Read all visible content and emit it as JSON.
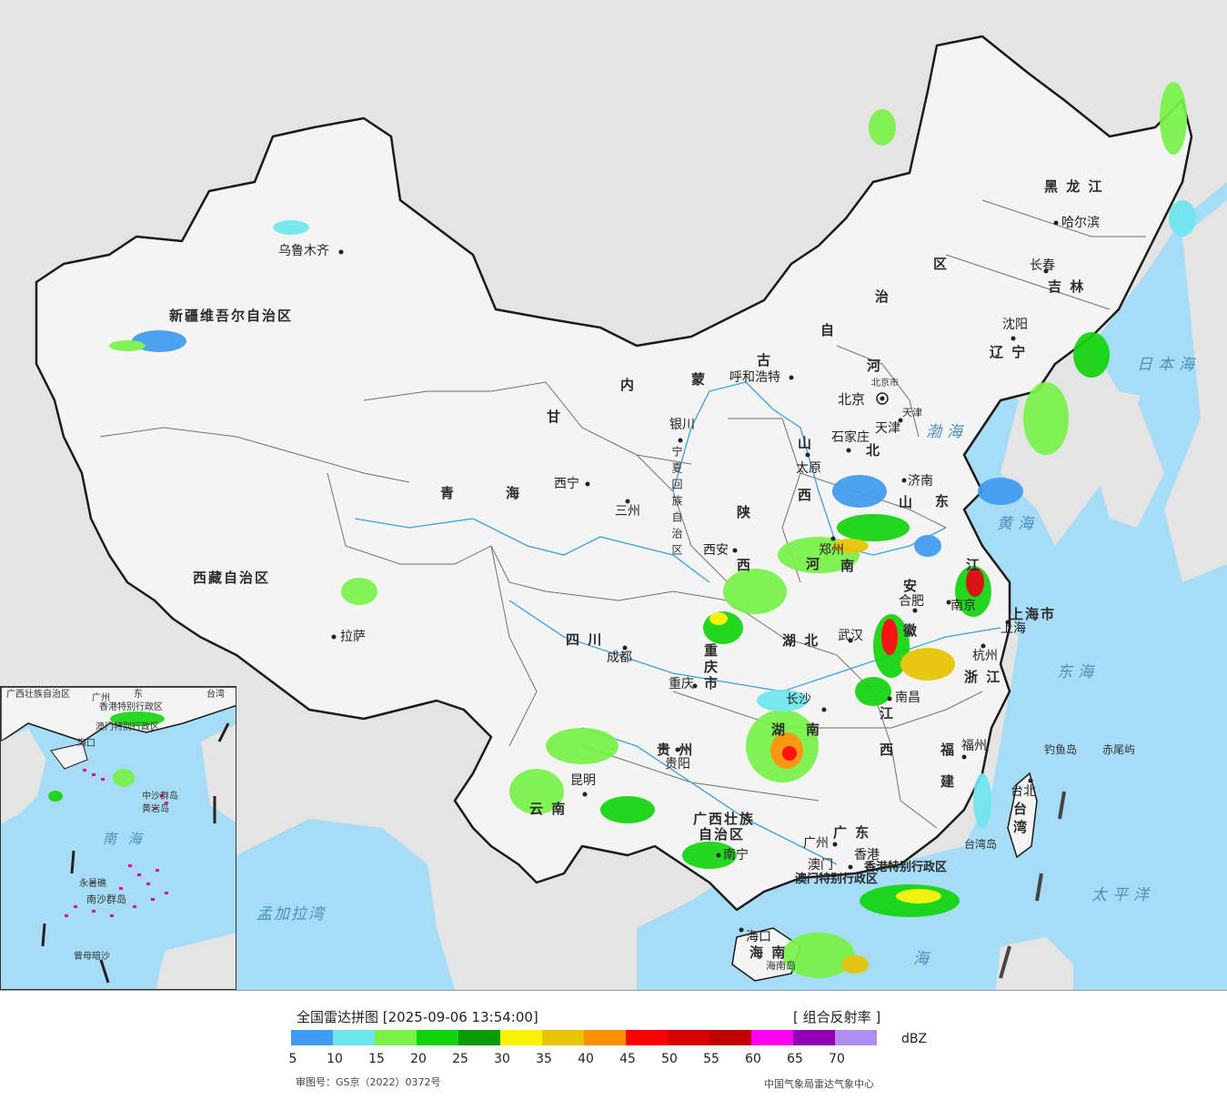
{
  "map": {
    "colors": {
      "sea": "#a6dcf6",
      "land": "#f4f4f4",
      "foreign_land": "#e4e4e4",
      "border": "#1a1a1a",
      "rivers": "#3aa0e0"
    },
    "provinces": {
      "xinjiang": "新疆维吾尔自治区",
      "xizang": "西藏自治区",
      "qinghai": [
        "青",
        "海"
      ],
      "gansu": "甘",
      "neimenggu": [
        "内",
        "蒙",
        "古",
        "自",
        "治",
        "区"
      ],
      "heilongjiang": "黑 龙 江",
      "jilin": "吉 林",
      "liaoning": "辽 宁",
      "hebei": "北",
      "hebei_he": "河",
      "shanxi": [
        "山",
        "西"
      ],
      "shandong": [
        "山",
        "东"
      ],
      "henan": [
        "河",
        "南"
      ],
      "shaanxi": [
        "陕",
        "西"
      ],
      "sichuan": "四 川",
      "chongqing": [
        "重",
        "庆",
        "市"
      ],
      "hubei": "湖 北",
      "hunan": [
        "湖",
        "南"
      ],
      "guizhou": "贵 州",
      "yunnan": "云 南",
      "guangxi": [
        "广西壮族",
        "自治区"
      ],
      "guangdong": "广 东",
      "jiangxi": [
        "江",
        "西"
      ],
      "fujian": [
        "福",
        "建"
      ],
      "zhejiang": "浙 江",
      "anhui": [
        "安",
        "徽"
      ],
      "jiangsu": [
        "江"
      ],
      "shanghai": "上海市",
      "hainan": "海 南",
      "taiwan": [
        "台",
        "湾"
      ],
      "ningxia": [
        "宁夏回族自治区"
      ],
      "beijing": "北京市",
      "tianjin": "天津",
      "hongkong": "香港特别行政区",
      "macao": "澳门特别行政区",
      "tianjin_city": "天津"
    },
    "cities": {
      "urumqi": "乌鲁木齐",
      "lhasa": "拉萨",
      "xining": "西宁",
      "lanzhou": "三州",
      "yinchuan": "银川",
      "hohhot": "呼和浩特",
      "beijing": "北京",
      "tianjin": "天津",
      "shijiazhuang": "石家庄",
      "taiyuan": "太原",
      "jinan": "济南",
      "zhengzhou": "郑州",
      "xian": "西安",
      "chengdu": "成都",
      "chongqing": "重庆",
      "wuhan": "武汉",
      "hefei": "合肥",
      "nanjing": "南京",
      "shanghai": "上海",
      "hangzhou": "杭州",
      "changsha": "长沙",
      "nanchang": "南昌",
      "fuzhou": "福州",
      "guiyang": "贵阳",
      "kunming": "昆明",
      "nanning": "南宁",
      "guangzhou": "广州",
      "macau": "澳门",
      "hongkong": "香港",
      "haikou": "海口",
      "taipei": "台北",
      "shenyang": "沈阳",
      "changchun": "长春",
      "harbin": "哈尔滨"
    },
    "seas": {
      "japan_sea": "日本海",
      "bohai": "渤海",
      "yellow_sea": "黄海",
      "east_sea": "东海",
      "pacific": "太平洋",
      "south_sea": "海",
      "bengal": "孟加拉湾"
    },
    "islands": {
      "diaoyu": "钓鱼岛",
      "chiwei": "赤尾屿",
      "taiwan_island": "台湾岛",
      "hainan_island": "海南岛"
    },
    "inset": {
      "south_sea": "南 海",
      "zhongsha": "中沙群岛",
      "huangyan": "黄岩岛",
      "yongshu": "永暑礁",
      "nansha": "南沙群岛",
      "zengmu": "曾母暗沙",
      "guangxi": "广西壮族自治区",
      "guangdong": "东",
      "taiwan": "台湾",
      "hainan": "海口",
      "hk": "香港特别行政区",
      "macao": "澳门特别行政区",
      "guangzhou": "广州"
    }
  },
  "legend": {
    "title": "全国雷达拼图 [2025-09-06 13:54:00]",
    "product": "[ 组合反射率 ]",
    "unit": "dBZ",
    "ticks": [
      "5",
      "10",
      "15",
      "20",
      "25",
      "30",
      "35",
      "40",
      "45",
      "50",
      "55",
      "60",
      "65",
      "70"
    ],
    "colors": [
      "#3f9cf0",
      "#6ee6ee",
      "#78f246",
      "#12d40c",
      "#0b9a06",
      "#f8f400",
      "#e8c400",
      "#ff8e00",
      "#fd0000",
      "#d70000",
      "#c10000",
      "#ff00f0",
      "#9000b5",
      "#ae8ff0"
    ],
    "approval": "审图号：GS京（2022）0372号",
    "source": "中国气象局雷达气象中心"
  }
}
